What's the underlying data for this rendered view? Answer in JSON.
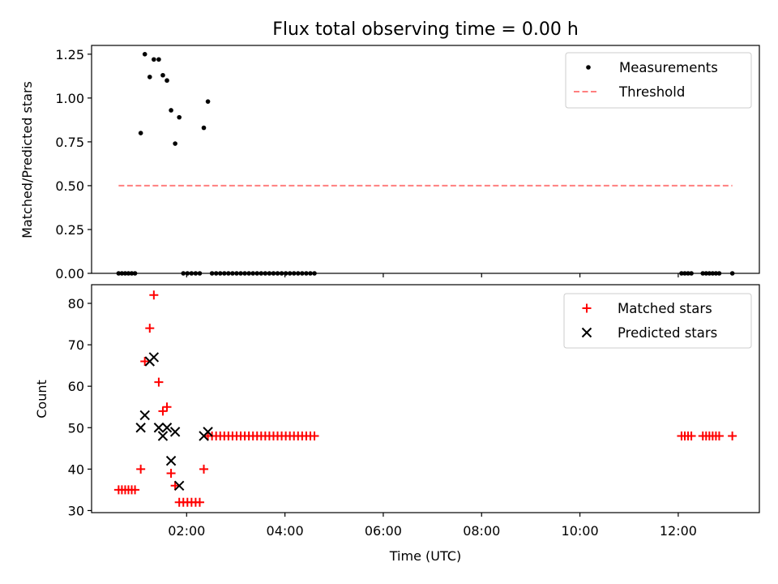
{
  "chart_data": [
    {
      "type": "scatter",
      "title": "Flux total observing time = 0.00 h",
      "xlabel": "",
      "ylabel": "Matched/Predicted stars",
      "ylim": [
        0.0,
        1.3
      ],
      "yticks": [
        0.0,
        0.25,
        0.5,
        0.75,
        1.0,
        1.25
      ],
      "ytick_labels": [
        "0.00",
        "0.25",
        "0.50",
        "0.75",
        "1.00",
        "1.25"
      ],
      "xlim": [
        "00:04",
        "13:39"
      ],
      "xticks": [
        "02:00",
        "04:00",
        "06:00",
        "08:00",
        "10:00",
        "12:00"
      ],
      "xtick_labels_visible": false,
      "grid": false,
      "legend_position": "top-right",
      "series": [
        {
          "name": "Measurements",
          "type": "scatter",
          "marker": "dot",
          "color": "#000000",
          "x": [
            "00:37",
            "00:41",
            "00:45",
            "00:49",
            "00:53",
            "00:57",
            "01:04",
            "01:09",
            "01:15",
            "01:20",
            "01:26",
            "01:31",
            "01:36",
            "01:41",
            "01:46",
            "01:51",
            "01:56",
            "02:01",
            "02:06",
            "02:11",
            "02:16",
            "02:21",
            "02:26",
            "02:31",
            "02:36",
            "02:41",
            "02:46",
            "02:51",
            "02:56",
            "03:01",
            "03:06",
            "03:11",
            "03:16",
            "03:21",
            "03:26",
            "03:31",
            "03:36",
            "03:41",
            "03:46",
            "03:51",
            "03:56",
            "04:01",
            "04:06",
            "04:11",
            "04:16",
            "04:21",
            "04:26",
            "04:31",
            "04:36",
            "12:04",
            "12:08",
            "12:12",
            "12:16",
            "12:30",
            "12:34",
            "12:38",
            "12:42",
            "12:46",
            "12:50",
            "13:06"
          ],
          "y": [
            0.0,
            0.0,
            0.0,
            0.0,
            0.0,
            0.0,
            0.8,
            1.25,
            1.12,
            1.22,
            1.22,
            1.13,
            1.1,
            0.93,
            0.74,
            0.89,
            0.0,
            0.0,
            0.0,
            0.0,
            0.0,
            0.83,
            0.98,
            0.0,
            0.0,
            0.0,
            0.0,
            0.0,
            0.0,
            0.0,
            0.0,
            0.0,
            0.0,
            0.0,
            0.0,
            0.0,
            0.0,
            0.0,
            0.0,
            0.0,
            0.0,
            0.0,
            0.0,
            0.0,
            0.0,
            0.0,
            0.0,
            0.0,
            0.0,
            0.0,
            0.0,
            0.0,
            0.0,
            0.0,
            0.0,
            0.0,
            0.0,
            0.0,
            0.0,
            0.0
          ]
        },
        {
          "name": "Threshold",
          "type": "line",
          "style": "dashed",
          "color": "#ff7f7f",
          "x": [
            "00:37",
            "13:06"
          ],
          "y": [
            0.5,
            0.5
          ]
        }
      ]
    },
    {
      "type": "scatter",
      "title": "",
      "xlabel": "Time (UTC)",
      "ylabel": "Count",
      "ylim": [
        29.5,
        84.5
      ],
      "yticks": [
        30,
        40,
        50,
        60,
        70,
        80
      ],
      "ytick_labels": [
        "30",
        "40",
        "50",
        "60",
        "70",
        "80"
      ],
      "xlim": [
        "00:04",
        "13:39"
      ],
      "xticks": [
        "02:00",
        "04:00",
        "06:00",
        "08:00",
        "10:00",
        "12:00"
      ],
      "xtick_labels": [
        "02:00",
        "04:00",
        "06:00",
        "08:00",
        "10:00",
        "12:00"
      ],
      "grid": false,
      "legend_position": "top-right",
      "series": [
        {
          "name": "Matched stars",
          "type": "scatter",
          "marker": "plus",
          "color": "#ff0000",
          "x": [
            "00:37",
            "00:41",
            "00:45",
            "00:49",
            "00:53",
            "00:57",
            "01:04",
            "01:09",
            "01:15",
            "01:20",
            "01:26",
            "01:31",
            "01:36",
            "01:41",
            "01:46",
            "01:51",
            "01:56",
            "02:01",
            "02:06",
            "02:11",
            "02:16",
            "02:21",
            "02:26",
            "02:31",
            "02:36",
            "02:41",
            "02:46",
            "02:51",
            "02:56",
            "03:01",
            "03:06",
            "03:11",
            "03:16",
            "03:21",
            "03:26",
            "03:31",
            "03:36",
            "03:41",
            "03:46",
            "03:51",
            "03:56",
            "04:01",
            "04:06",
            "04:11",
            "04:16",
            "04:21",
            "04:26",
            "04:31",
            "04:36",
            "12:04",
            "12:08",
            "12:12",
            "12:16",
            "12:30",
            "12:34",
            "12:38",
            "12:42",
            "12:46",
            "12:50",
            "13:06"
          ],
          "y": [
            35,
            35,
            35,
            35,
            35,
            35,
            40,
            66,
            74,
            82,
            61,
            54,
            55,
            39,
            36,
            32,
            32,
            32,
            32,
            32,
            32,
            40,
            48,
            48,
            48,
            48,
            48,
            48,
            48,
            48,
            48,
            48,
            48,
            48,
            48,
            48,
            48,
            48,
            48,
            48,
            48,
            48,
            48,
            48,
            48,
            48,
            48,
            48,
            48,
            48,
            48,
            48,
            48,
            48,
            48,
            48,
            48,
            48,
            48,
            48
          ]
        },
        {
          "name": "Predicted stars",
          "type": "scatter",
          "marker": "x",
          "color": "#000000",
          "x": [
            "01:04",
            "01:09",
            "01:15",
            "01:20",
            "01:26",
            "01:31",
            "01:36",
            "01:41",
            "01:46",
            "01:51",
            "02:21",
            "02:26"
          ],
          "y": [
            50,
            53,
            66,
            67,
            50,
            48,
            50,
            42,
            49,
            36,
            48,
            49
          ]
        }
      ]
    }
  ]
}
